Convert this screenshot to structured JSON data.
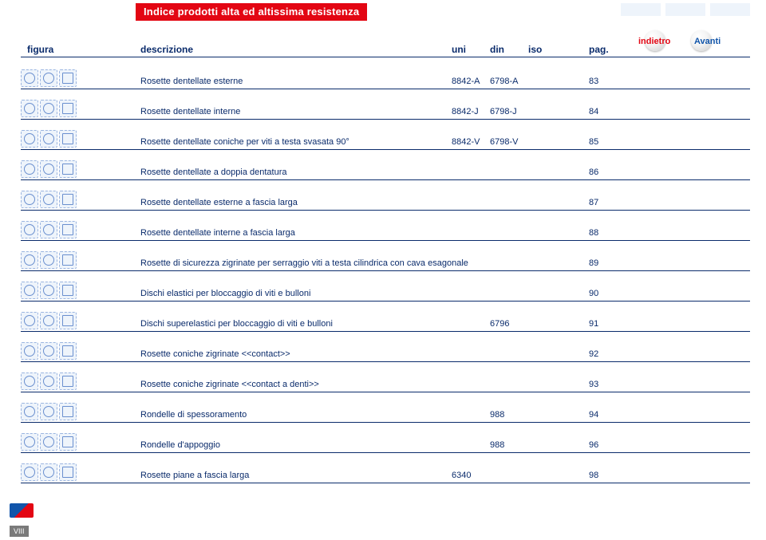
{
  "title": "Indice prodotti alta ed altissima resistenza",
  "header": {
    "figura": "figura",
    "descrizione": "descrizione",
    "uni": "uni",
    "din": "din",
    "iso": "iso",
    "pag": "pag."
  },
  "nav": {
    "indietro": "indietro",
    "avanti": "Avanti"
  },
  "rows": [
    {
      "descr": "Rosette dentellate esterne",
      "uni": "8842-A",
      "din": "6798-A",
      "iso": "",
      "pag": "83"
    },
    {
      "descr": "Rosette dentellate interne",
      "uni": "8842-J",
      "din": "6798-J",
      "iso": "",
      "pag": "84"
    },
    {
      "descr": "Rosette dentellate coniche per viti a testa svasata 90°",
      "uni": "8842-V",
      "din": "6798-V",
      "iso": "",
      "pag": "85"
    },
    {
      "descr": "Rosette dentellate a doppia dentatura",
      "uni": "",
      "din": "",
      "iso": "",
      "pag": "86"
    },
    {
      "descr": "Rosette dentellate esterne a fascia larga",
      "uni": "",
      "din": "",
      "iso": "",
      "pag": "87"
    },
    {
      "descr": "Rosette dentellate interne a fascia larga",
      "uni": "",
      "din": "",
      "iso": "",
      "pag": "88"
    },
    {
      "descr": "Rosette di sicurezza zigrinate per serraggio viti a testa cilindrica con cava esagonale",
      "uni": "",
      "din": "",
      "iso": "",
      "pag": "89"
    },
    {
      "descr": "Dischi elastici per bloccaggio di viti e bulloni",
      "uni": "",
      "din": "",
      "iso": "",
      "pag": "90"
    },
    {
      "descr": "Dischi superelastici per bloccaggio di viti e bulloni",
      "uni": "",
      "din": "6796",
      "iso": "",
      "pag": "91"
    },
    {
      "descr": "Rosette coniche zigrinate <<contact>>",
      "uni": "",
      "din": "",
      "iso": "",
      "pag": "92"
    },
    {
      "descr": "Rosette coniche zigrinate <<contact a denti>>",
      "uni": "",
      "din": "",
      "iso": "",
      "pag": "93"
    },
    {
      "descr": "Rondelle di spessoramento",
      "uni": "",
      "din": "988",
      "iso": "",
      "pag": "94"
    },
    {
      "descr": "Rondelle d'appoggio",
      "uni": "",
      "din": "988",
      "iso": "",
      "pag": "96"
    },
    {
      "descr": "Rosette piane a fascia larga",
      "uni": "6340",
      "din": "",
      "iso": "",
      "pag": "98"
    }
  ],
  "page_num": "VIII",
  "colors": {
    "red": "#e30613",
    "navy": "#0a2b6b",
    "blue_link": "#1155aa",
    "pale_blue": "#eef4fb"
  }
}
